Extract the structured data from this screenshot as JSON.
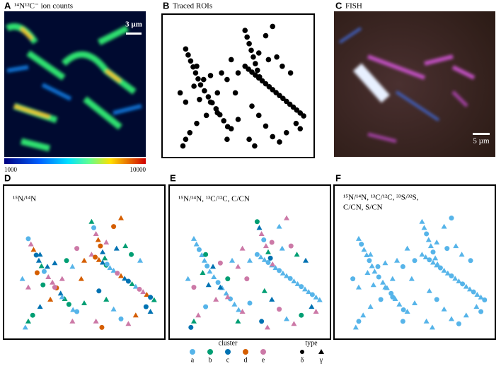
{
  "panels": [
    {
      "letter": "A",
      "title": "¹⁴N¹²C⁻ ion counts",
      "scale_bar": "3 µm",
      "colorbar": {
        "min_label": "1000",
        "max_label": "10000"
      }
    },
    {
      "letter": "B",
      "title": "Traced ROIs"
    },
    {
      "letter": "C",
      "title": "FISH",
      "scale_bar": "5 µm"
    },
    {
      "letter": "D",
      "title_lines": [
        "¹⁵N/¹⁴N"
      ]
    },
    {
      "letter": "E",
      "title_lines": [
        "¹⁵N/¹⁴N, ¹³C/¹²C, C/CN"
      ]
    },
    {
      "letter": "F",
      "title_lines": [
        "¹⁵N/¹⁴N, ¹³C/¹²C, ³³S/³²S,",
        "C/CN, S/CN"
      ]
    }
  ],
  "legend": {
    "cluster_title": "cluster",
    "clusters": [
      {
        "name": "a",
        "color": "#56b4e9"
      },
      {
        "name": "b",
        "color": "#009e73"
      },
      {
        "name": "c",
        "color": "#0072b2"
      },
      {
        "name": "d",
        "color": "#d55e00"
      },
      {
        "name": "e",
        "color": "#cc79a7"
      }
    ],
    "type_title": "type",
    "types": [
      "δ",
      "γ"
    ]
  }
}
